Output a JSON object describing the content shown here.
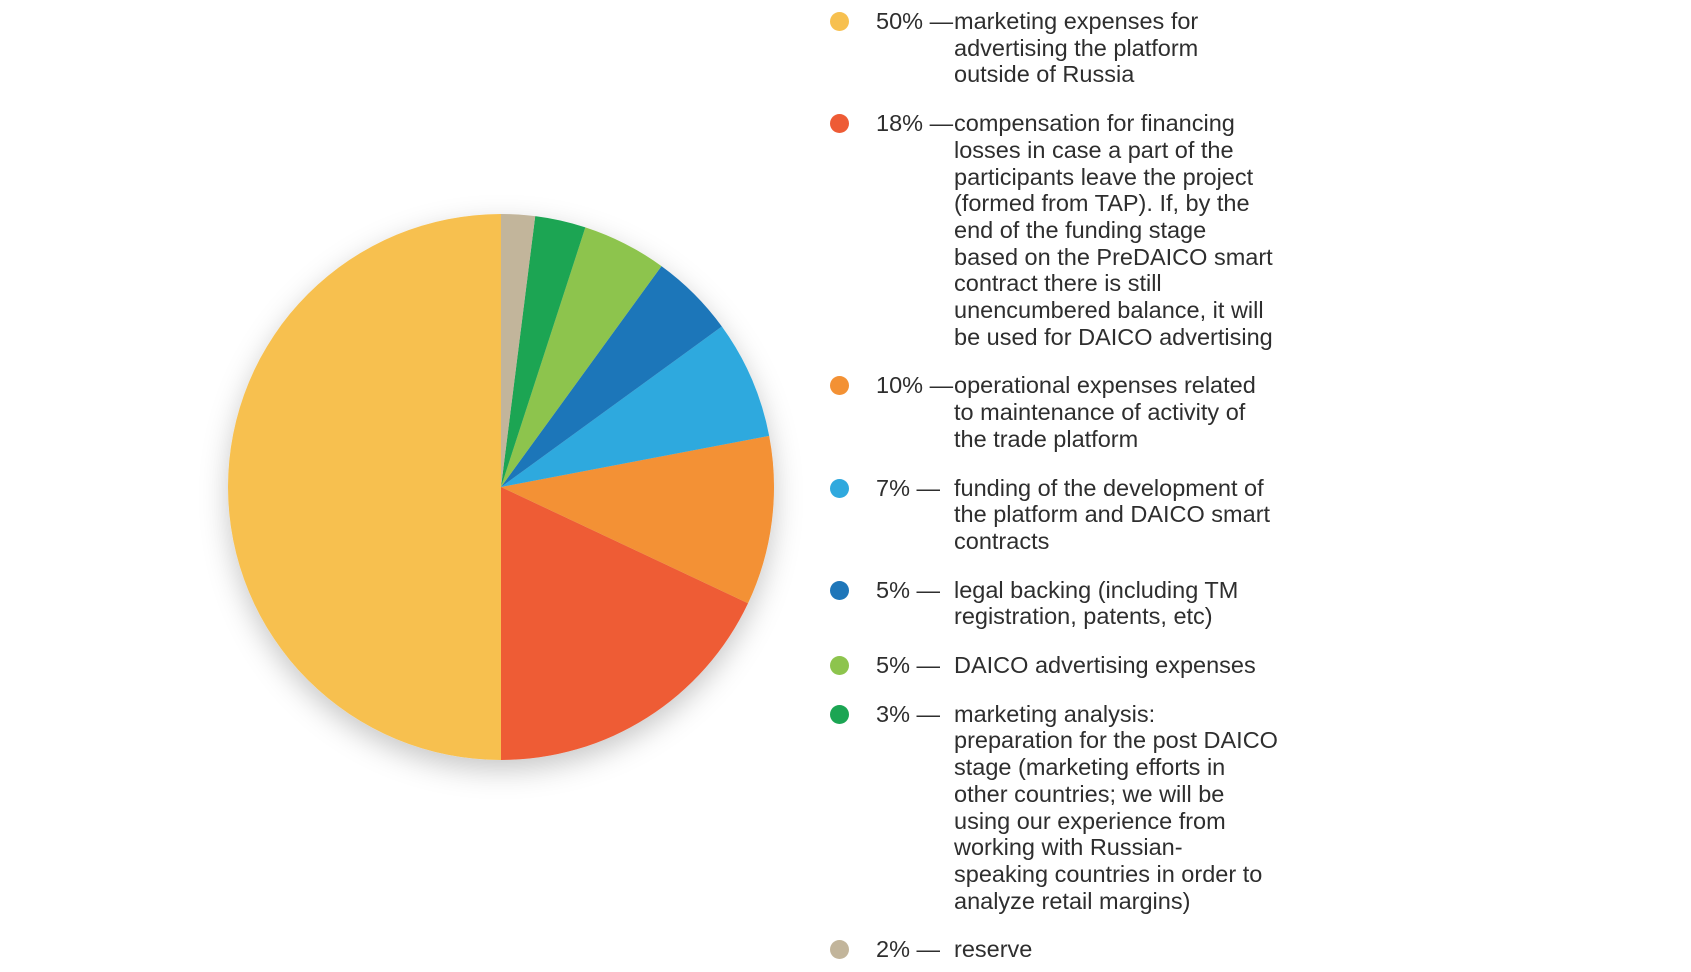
{
  "chart_data": {
    "type": "pie",
    "separator": "—",
    "categories": [
      "marketing expenses for\nadvertising the platform\noutside of Russia",
      "compensation for financing\nlosses in case a part of the\nparticipants leave the project\n(formed from TAP). If, by the\nend of the funding stage\nbased on the PreDAICO smart\ncontract there is still\nunencumbered balance, it will\nbe used for DAICO advertising",
      "operational expenses related\nto maintenance of activity of\nthe trade platform",
      "funding of the development of\nthe platform and DAICO smart\ncontracts",
      "legal backing (including TM\nregistration, patents, etc)",
      "DAICO advertising expenses",
      "marketing analysis:\npreparation for the post DAICO\nstage (marketing efforts in\nother countries; we will be\nusing our experience from\nworking with Russian-\nspeaking countries in order to\nanalyze retail margins)",
      "reserve"
    ],
    "values": [
      50,
      18,
      10,
      7,
      5,
      5,
      3,
      2
    ],
    "value_labels": [
      "50%",
      "18%",
      "10%",
      "7%",
      "5%",
      "5%",
      "3%",
      "2%"
    ],
    "colors": [
      "#f7c04f",
      "#ee5b35",
      "#f39134",
      "#2fa9de",
      "#1e76b9",
      "#8dc44d",
      "#1ba553",
      "#c2b59b"
    ],
    "direction": "counterclockwise"
  }
}
